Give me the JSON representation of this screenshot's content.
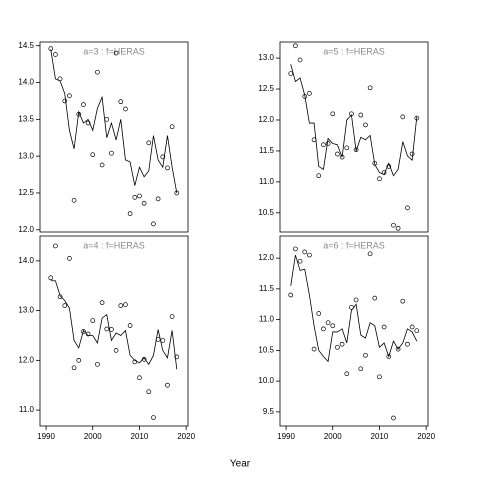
{
  "xlabel": "Year",
  "chart_data": [
    {
      "type": "line",
      "title": "a=3  :  f=HERAS",
      "x": [
        1991,
        1992,
        1993,
        1994,
        1995,
        1996,
        1997,
        1998,
        1999,
        2000,
        2001,
        2002,
        2003,
        2004,
        2005,
        2006,
        2007,
        2008,
        2009,
        2010,
        2011,
        2012,
        2013,
        2014,
        2015,
        2016,
        2017,
        2018
      ],
      "series": [
        {
          "style": "points",
          "color": "#000000",
          "values": [
            14.46,
            14.38,
            14.05,
            13.75,
            13.82,
            12.4,
            13.57,
            13.7,
            13.45,
            13.02,
            14.14,
            12.88,
            13.5,
            13.04,
            14.4,
            13.74,
            13.64,
            12.22,
            12.44,
            12.46,
            12.36,
            13.18,
            12.08,
            12.42,
            12.99,
            12.84,
            13.4,
            12.5
          ]
        },
        {
          "style": "line",
          "color": "#000000",
          "values": [
            14.45,
            14.05,
            14.02,
            13.85,
            13.35,
            13.1,
            13.6,
            13.45,
            13.5,
            13.35,
            13.65,
            13.8,
            13.25,
            13.45,
            13.22,
            13.5,
            12.95,
            12.92,
            12.6,
            12.85,
            12.72,
            12.8,
            13.28,
            12.95,
            12.85,
            13.28,
            12.85,
            12.5
          ]
        }
      ],
      "xlim": [
        1988.7,
        2020.4
      ],
      "ylim": [
        11.97,
        14.55
      ],
      "yticks": [
        {
          "value": 12,
          "label": "12.0"
        },
        12.5,
        {
          "value": 13,
          "label": "13.0"
        },
        13.5,
        {
          "value": 14,
          "label": "14.0"
        },
        14.5
      ]
    },
    {
      "type": "line",
      "title": "a=5  :  f=HERAS",
      "x": [
        1991,
        1992,
        1993,
        1994,
        1995,
        1996,
        1997,
        1998,
        1999,
        2000,
        2001,
        2002,
        2003,
        2004,
        2005,
        2006,
        2007,
        2008,
        2009,
        2010,
        2011,
        2012,
        2013,
        2014,
        2015,
        2016,
        2017,
        2018
      ],
      "series": [
        {
          "style": "points",
          "color": "#000000",
          "values": [
            12.75,
            13.2,
            12.97,
            12.38,
            12.43,
            11.68,
            11.1,
            11.6,
            11.62,
            12.1,
            11.45,
            11.4,
            11.55,
            12.1,
            11.52,
            12.08,
            11.92,
            12.52,
            11.3,
            11.05,
            11.15,
            11.25,
            10.3,
            10.25,
            12.05,
            10.58,
            11.45,
            12.03
          ]
        },
        {
          "style": "line",
          "color": "#000000",
          "values": [
            12.9,
            12.62,
            12.68,
            12.4,
            11.95,
            11.95,
            11.25,
            11.2,
            11.7,
            11.62,
            11.6,
            11.4,
            12.0,
            12.08,
            11.5,
            11.72,
            11.68,
            11.75,
            11.28,
            11.15,
            11.12,
            11.3,
            11.1,
            11.2,
            11.65,
            11.42,
            11.35,
            12.05
          ]
        }
      ],
      "xlim": [
        1988.7,
        2020.4
      ],
      "ylim": [
        10.19,
        13.26
      ],
      "yticks": [
        10.5,
        {
          "value": 11,
          "label": "11.0"
        },
        11.5,
        {
          "value": 12,
          "label": "12.0"
        },
        12.5,
        {
          "value": 13,
          "label": "13.0"
        }
      ]
    },
    {
      "type": "line",
      "title": "a=4  :  f=HERAS",
      "x": [
        1991,
        1992,
        1993,
        1994,
        1995,
        1996,
        1997,
        1998,
        1999,
        2000,
        2001,
        2002,
        2003,
        2004,
        2005,
        2006,
        2007,
        2008,
        2009,
        2010,
        2011,
        2012,
        2013,
        2014,
        2015,
        2016,
        2017,
        2018
      ],
      "series": [
        {
          "style": "points",
          "color": "#000000",
          "values": [
            13.66,
            14.3,
            13.28,
            13.1,
            14.05,
            11.85,
            12.0,
            12.58,
            12.53,
            12.8,
            11.92,
            13.16,
            12.63,
            12.62,
            12.2,
            13.1,
            13.12,
            12.7,
            11.97,
            11.65,
            12.02,
            11.37,
            10.85,
            12.42,
            12.4,
            11.5,
            12.88,
            12.07
          ]
        },
        {
          "style": "line",
          "color": "#000000",
          "values": [
            13.6,
            13.6,
            13.3,
            13.2,
            13.05,
            12.4,
            12.25,
            12.6,
            12.5,
            12.5,
            12.35,
            12.85,
            12.92,
            12.4,
            12.55,
            12.5,
            12.6,
            12.1,
            12.0,
            11.95,
            12.05,
            11.92,
            12.1,
            12.62,
            12.2,
            12.05,
            12.6,
            11.82
          ]
        }
      ],
      "xlim": [
        1988.7,
        2020.4
      ],
      "ylim": [
        10.68,
        14.5
      ],
      "xticks": [
        1990,
        2000,
        2010,
        2020
      ],
      "yticks": [
        {
          "value": 11,
          "label": "11.0"
        },
        {
          "value": 12,
          "label": "12.0"
        },
        {
          "value": 13,
          "label": "13.0"
        },
        {
          "value": 14,
          "label": "14.0"
        }
      ]
    },
    {
      "type": "line",
      "title": "a=6  :  f=HERAS",
      "x": [
        1991,
        1992,
        1993,
        1994,
        1995,
        1996,
        1997,
        1998,
        1999,
        2000,
        2001,
        2002,
        2003,
        2004,
        2005,
        2006,
        2007,
        2008,
        2009,
        2010,
        2011,
        2012,
        2013,
        2014,
        2015,
        2016,
        2017,
        2018
      ],
      "series": [
        {
          "style": "points",
          "color": "#000000",
          "values": [
            11.4,
            12.15,
            11.95,
            12.1,
            12.05,
            10.52,
            11.1,
            10.85,
            10.95,
            10.9,
            10.55,
            10.6,
            10.12,
            11.2,
            11.32,
            10.2,
            10.42,
            12.07,
            11.35,
            10.07,
            10.88,
            10.4,
            9.4,
            10.52,
            11.3,
            10.6,
            10.88,
            10.82
          ]
        },
        {
          "style": "line",
          "color": "#000000",
          "values": [
            11.55,
            12.05,
            11.8,
            11.82,
            11.4,
            10.9,
            10.5,
            10.4,
            10.32,
            10.8,
            10.8,
            10.85,
            10.62,
            11.15,
            11.25,
            10.75,
            10.7,
            10.95,
            10.9,
            10.55,
            10.62,
            10.4,
            10.65,
            10.52,
            10.62,
            10.85,
            10.8,
            10.65
          ]
        }
      ],
      "xlim": [
        1988.7,
        2020.4
      ],
      "ylim": [
        9.27,
        12.36
      ],
      "xticks": [
        1990,
        2000,
        2010,
        2020
      ],
      "yticks": [
        9.5,
        {
          "value": 10,
          "label": "10.0"
        },
        10.5,
        {
          "value": 11,
          "label": "11.0"
        },
        11.5,
        {
          "value": 12,
          "label": "12.0"
        }
      ]
    }
  ]
}
